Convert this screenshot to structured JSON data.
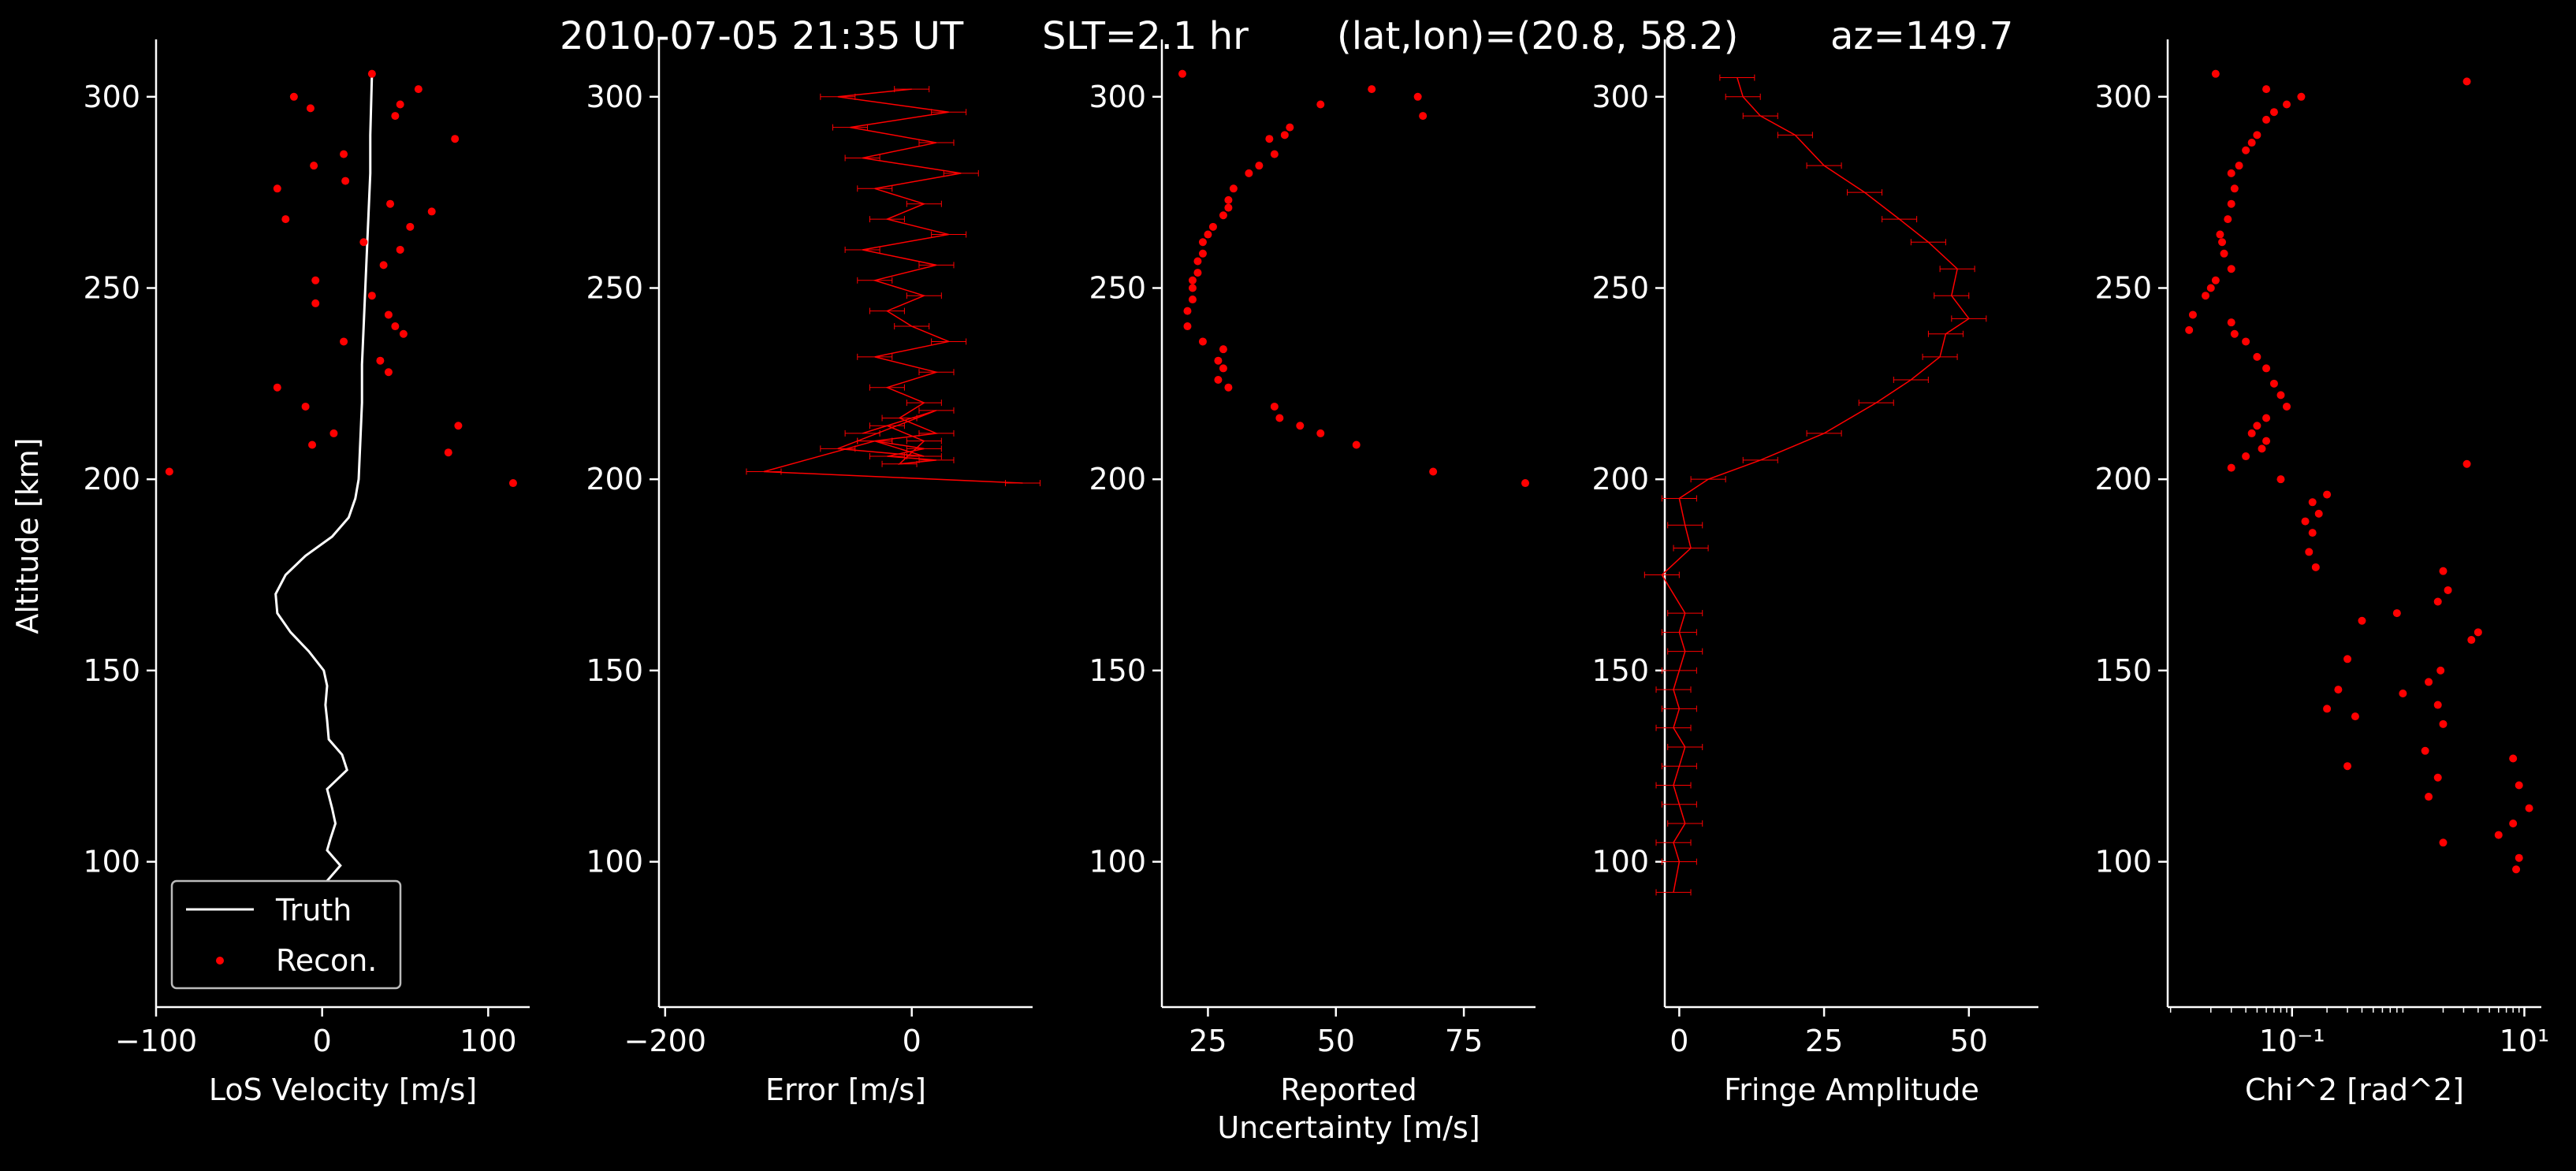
{
  "figure": {
    "title_parts": [
      "2010-07-05 21:35 UT",
      "SLT=2.1 hr",
      "(lat,lon)=(20.8, 58.2)",
      "az=149.7"
    ]
  },
  "colors": {
    "background": "#000000",
    "axes": "#ffffff",
    "truth": "#ffffff",
    "recon": "#ff0000"
  },
  "chart_data": [
    {
      "type": "line",
      "xlabel": "LoS Velocity [m/s]",
      "ylabel": "Altitude [km]",
      "xlim": [
        -100,
        125
      ],
      "ylim": [
        62,
        315
      ],
      "xticks": [
        -100,
        0,
        100
      ],
      "xtick_labels": [
        "−100",
        "0",
        "100"
      ],
      "yticks": [
        100,
        150,
        200,
        250,
        300
      ],
      "legend": {
        "position": "lower-left",
        "entries": [
          "Truth",
          "Recon."
        ]
      },
      "series": [
        {
          "name": "Truth",
          "style": "line",
          "x": [
            10,
            3,
            11,
            3,
            5,
            8,
            6,
            3,
            15,
            12,
            4,
            3,
            2,
            3,
            1,
            -8,
            -19,
            -27,
            -28,
            -22,
            -10,
            6,
            16,
            20,
            22,
            23,
            24,
            24,
            25,
            26,
            27,
            28,
            29,
            29,
            30
          ],
          "y": [
            92,
            95,
            99,
            103,
            106,
            110,
            114,
            119,
            124,
            128,
            132,
            137,
            141,
            146,
            150,
            155,
            160,
            165,
            170,
            175,
            180,
            185,
            190,
            195,
            200,
            210,
            220,
            230,
            240,
            250,
            260,
            270,
            280,
            290,
            306
          ]
        },
        {
          "name": "Recon.",
          "style": "points",
          "x": [
            30,
            58,
            -17,
            -7,
            44,
            47,
            80,
            13,
            -5,
            -27,
            41,
            66,
            14,
            -22,
            53,
            25,
            47,
            37,
            30,
            -4,
            -4,
            40,
            44,
            49,
            13,
            35,
            40,
            -27,
            -6,
            7,
            82,
            76,
            -10,
            -92,
            115
          ],
          "y": [
            306,
            302,
            300,
            297,
            295,
            298,
            289,
            285,
            282,
            276,
            272,
            270,
            278,
            268,
            266,
            262,
            260,
            256,
            248,
            252,
            246,
            243,
            240,
            238,
            236,
            231,
            228,
            224,
            209,
            212,
            214,
            207,
            219,
            202,
            199
          ]
        }
      ]
    },
    {
      "type": "line",
      "xlabel": "Error [m/s]",
      "xlim": [
        -205,
        98
      ],
      "ylim": [
        62,
        315
      ],
      "xticks": [
        -200,
        0
      ],
      "xtick_labels": [
        "−200",
        "0"
      ],
      "yticks": [
        100,
        150,
        200,
        250,
        300
      ],
      "series": [
        {
          "name": "",
          "style": "errorbar",
          "x": [
            0,
            -60,
            30,
            -50,
            20,
            -40,
            40,
            -30,
            10,
            -20,
            30,
            -40,
            20,
            -30,
            10,
            -20,
            0,
            30,
            -30,
            20,
            -20,
            10,
            -10,
            20,
            -30,
            10,
            -20,
            20,
            -10,
            10,
            -20,
            -40,
            20,
            -60,
            10,
            -30,
            -120,
            90
          ],
          "y": [
            302,
            300,
            296,
            292,
            288,
            284,
            280,
            276,
            272,
            268,
            264,
            260,
            256,
            252,
            248,
            244,
            240,
            236,
            232,
            228,
            224,
            220,
            216,
            212,
            210,
            208,
            206,
            205,
            204,
            210,
            214,
            212,
            218,
            208,
            206,
            210,
            202,
            199
          ]
        }
      ]
    },
    {
      "type": "scatter",
      "xlabel": "Reported\nUncertainty [m/s]",
      "xlim": [
        16,
        89
      ],
      "ylim": [
        62,
        315
      ],
      "xticks": [
        25,
        50,
        75
      ],
      "yticks": [
        100,
        150,
        200,
        250,
        300
      ],
      "series": [
        {
          "name": "",
          "style": "points",
          "x": [
            20,
            57,
            66,
            67,
            47,
            41,
            40,
            37,
            38,
            33,
            35,
            30,
            29,
            29,
            28,
            26,
            25,
            24,
            24,
            23,
            23,
            22,
            22,
            22,
            21,
            21,
            24,
            28,
            27,
            28,
            27,
            29,
            38,
            39,
            43,
            47,
            54,
            69,
            87
          ],
          "y": [
            306,
            302,
            300,
            295,
            298,
            292,
            290,
            289,
            285,
            280,
            282,
            276,
            273,
            271,
            269,
            266,
            264,
            262,
            259,
            257,
            254,
            252,
            250,
            247,
            244,
            240,
            236,
            234,
            231,
            229,
            226,
            224,
            219,
            216,
            214,
            212,
            209,
            202,
            199
          ]
        }
      ]
    },
    {
      "type": "line",
      "xlabel": "Fringe Amplitude",
      "xlim": [
        -2.5,
        62
      ],
      "ylim": [
        62,
        315
      ],
      "xticks": [
        0,
        25,
        50
      ],
      "yticks": [
        100,
        150,
        200,
        250,
        300
      ],
      "series": [
        {
          "name": "",
          "style": "errorbar",
          "x": [
            -1,
            0,
            -1,
            1,
            0,
            -1,
            0,
            1,
            -1,
            0,
            -1,
            0,
            1,
            0,
            1,
            -3,
            2,
            1,
            0,
            5,
            14,
            25,
            34,
            40,
            45,
            46,
            50,
            47,
            48,
            43,
            38,
            32,
            25,
            20,
            14,
            11,
            10
          ],
          "y": [
            92,
            100,
            105,
            110,
            115,
            120,
            125,
            130,
            135,
            140,
            145,
            150,
            155,
            160,
            165,
            175,
            182,
            188,
            195,
            200,
            205,
            212,
            220,
            226,
            232,
            238,
            242,
            248,
            255,
            262,
            268,
            275,
            282,
            290,
            295,
            300,
            305
          ]
        }
      ]
    },
    {
      "type": "scatter",
      "xlabel": "Chi^2 [rad^2]",
      "xscale": "log",
      "xlim": [
        0.0085,
        14
      ],
      "ylim": [
        62,
        315
      ],
      "xticks": [
        0.1,
        10
      ],
      "xtick_labels": [
        "10⁻¹",
        "10¹"
      ],
      "yticks": [
        100,
        150,
        200,
        250,
        300
      ],
      "series": [
        {
          "name": "",
          "style": "points",
          "x": [
            0.022,
            3.2,
            0.06,
            0.12,
            0.09,
            0.07,
            0.06,
            0.05,
            0.045,
            0.04,
            0.035,
            0.03,
            0.032,
            0.03,
            0.028,
            0.024,
            0.025,
            0.026,
            0.03,
            0.022,
            0.02,
            0.018,
            0.014,
            0.013,
            0.03,
            0.032,
            0.04,
            0.05,
            0.06,
            0.07,
            0.08,
            0.09,
            0.06,
            0.05,
            0.045,
            0.06,
            0.055,
            0.04,
            0.03,
            0.08,
            3.2,
            0.2,
            0.15,
            0.13,
            0.17,
            0.15,
            0.14,
            0.16,
            2,
            2.2,
            1.8,
            0.8,
            0.4,
            4,
            3.5,
            0.3,
            1.9,
            1.5,
            0.25,
            0.9,
            1.8,
            0.2,
            0.35,
            2,
            1.4,
            8,
            0.3,
            1.8,
            9,
            1.5,
            11,
            8,
            6,
            2,
            9,
            8.5
          ],
          "y": [
            306,
            304,
            302,
            300,
            298,
            296,
            294,
            290,
            288,
            286,
            282,
            280,
            276,
            272,
            268,
            264,
            262,
            259,
            255,
            252,
            250,
            248,
            243,
            239,
            241,
            238,
            236,
            232,
            229,
            225,
            222,
            219,
            216,
            214,
            212,
            210,
            208,
            206,
            203,
            200,
            204,
            196,
            194,
            189,
            191,
            186,
            181,
            177,
            176,
            171,
            168,
            165,
            163,
            160,
            158,
            153,
            150,
            147,
            145,
            144,
            141,
            140,
            138,
            136,
            129,
            127,
            125,
            122,
            120,
            117,
            114,
            110,
            107,
            105,
            101,
            98
          ]
        }
      ]
    }
  ]
}
